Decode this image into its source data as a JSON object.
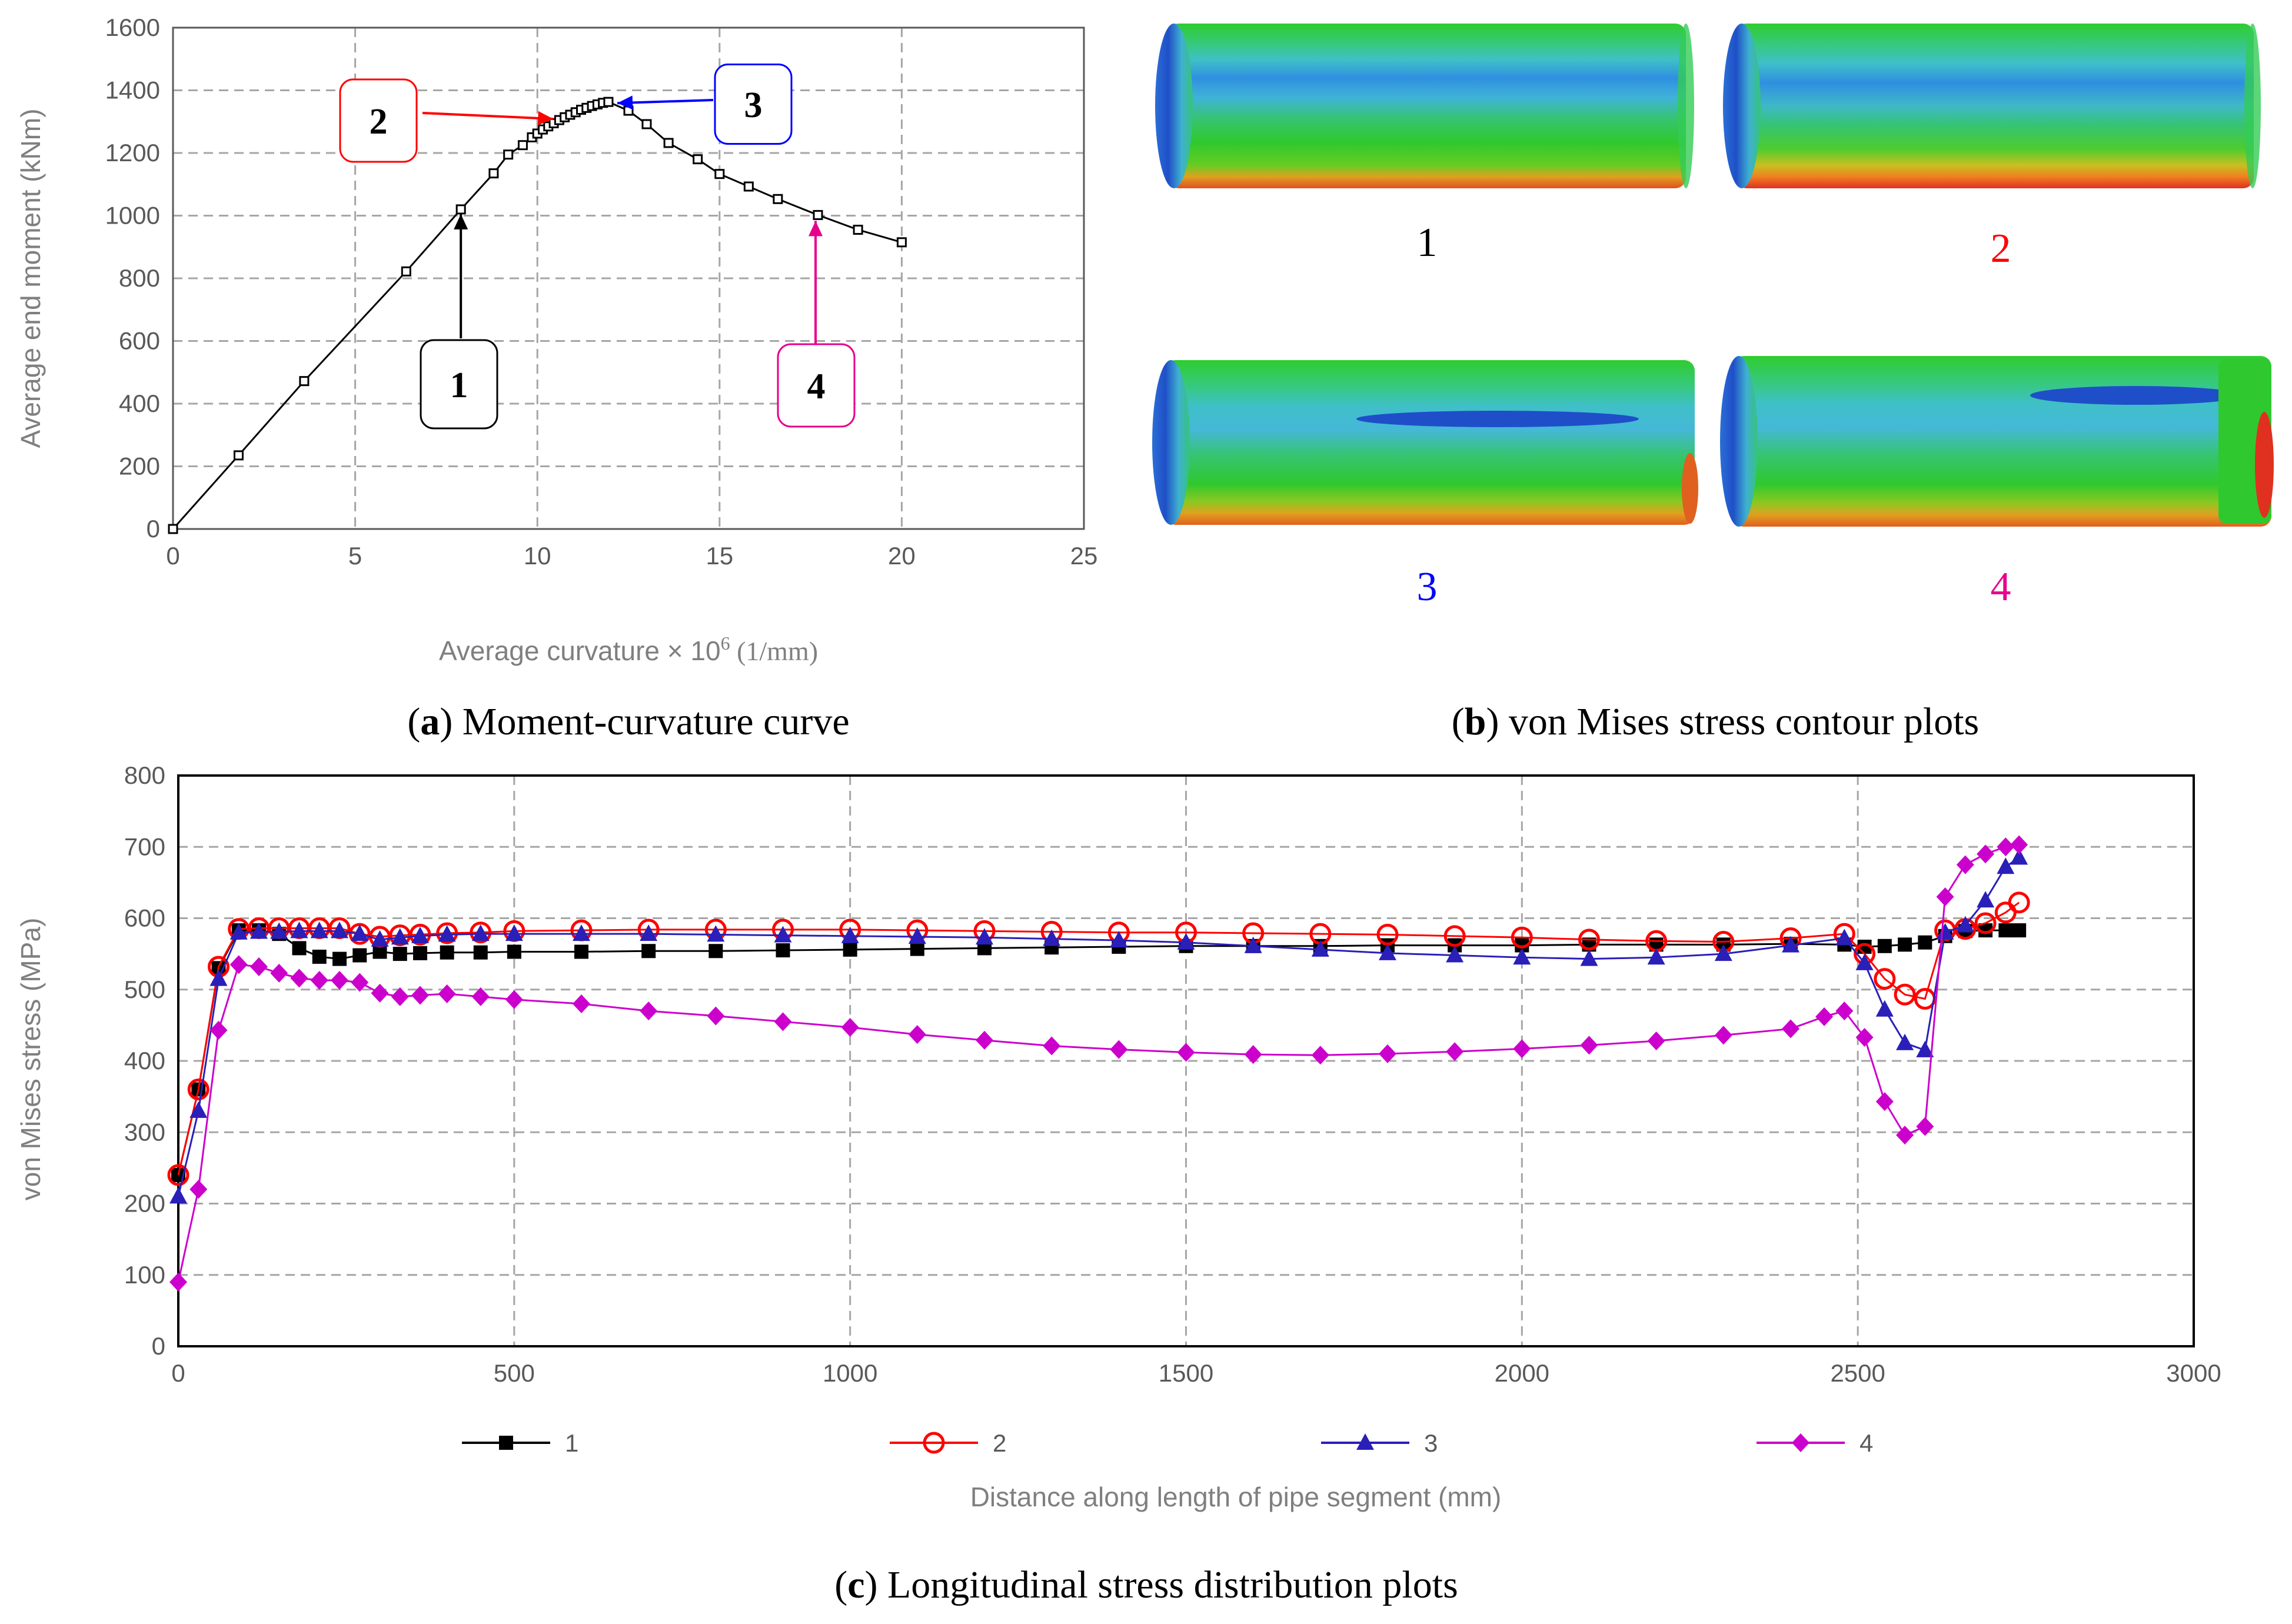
{
  "captions": {
    "a_letter": "a",
    "a_text": " Moment-curvature curve",
    "b_letter": "b",
    "b_text": " von Mises stress contour plots",
    "c_letter": "c",
    "c_text": " Longitudinal stress distribution plots"
  },
  "pipes": {
    "labels": [
      {
        "text": "1",
        "color": "#000000"
      },
      {
        "text": "2",
        "color": "#ff0000"
      },
      {
        "text": "3",
        "color": "#0000ff"
      },
      {
        "text": "4",
        "color": "#e6008c"
      }
    ]
  },
  "colors": {
    "black": "#000000",
    "red": "#ff0000",
    "blue": "#0000ff",
    "navy": "#2a1fb8",
    "magenta": "#cc00cc",
    "annot4": "#e6008c"
  },
  "chart_data": [
    {
      "id": "a",
      "type": "line",
      "title": "Moment-curvature curve",
      "xlabel_prefix": "Average curvature × 10",
      "xlabel_sup": "6",
      "xlabel_suffix": " (1/mm)",
      "ylabel": "Average end moment (kNm)",
      "xlim": [
        0,
        25
      ],
      "ylim": [
        0,
        1600
      ],
      "xticks": [
        0,
        5,
        10,
        15,
        20,
        25
      ],
      "yticks": [
        0,
        200,
        400,
        600,
        800,
        1000,
        1200,
        1400,
        1600
      ],
      "grid": true,
      "series": [
        {
          "name": "moment-curvature",
          "x": [
            0,
            1.8,
            3.6,
            6.4,
            7.9,
            8.8,
            9.2,
            9.6,
            9.85,
            10.0,
            10.15,
            10.3,
            10.45,
            10.6,
            10.75,
            10.9,
            11.05,
            11.2,
            11.35,
            11.5,
            11.65,
            11.8,
            11.95,
            12.5,
            13.0,
            13.6,
            14.4,
            15.0,
            15.8,
            16.6,
            17.7,
            18.8,
            20.0
          ],
          "y": [
            0,
            235,
            472,
            822,
            1020,
            1135,
            1195,
            1225,
            1250,
            1262,
            1275,
            1285,
            1295,
            1305,
            1314,
            1322,
            1330,
            1338,
            1344,
            1350,
            1355,
            1360,
            1363,
            1335,
            1292,
            1232,
            1180,
            1133,
            1093,
            1053,
            1002,
            955,
            915
          ]
        }
      ],
      "annotations": [
        {
          "label": "1",
          "color": "#000000",
          "point": [
            7.9,
            1020
          ]
        },
        {
          "label": "2",
          "color": "#ff0000",
          "point": [
            10.6,
            1305
          ]
        },
        {
          "label": "3",
          "color": "#0000ff",
          "point": [
            12.0,
            1363
          ]
        },
        {
          "label": "4",
          "color": "#e6008c",
          "point": [
            17.7,
            1002
          ]
        }
      ]
    },
    {
      "id": "c",
      "type": "line",
      "title": "Longitudinal stress distribution plots",
      "xlabel": "Distance along length of pipe segment (mm)",
      "ylabel": "von Mises stress (MPa)",
      "xlim": [
        0,
        3000
      ],
      "ylim": [
        0,
        800
      ],
      "xticks": [
        0,
        500,
        1000,
        1500,
        2000,
        2500,
        3000
      ],
      "yticks": [
        0,
        100,
        200,
        300,
        400,
        500,
        600,
        700,
        800
      ],
      "grid": true,
      "legend_position": "bottom",
      "series": [
        {
          "name": "1",
          "marker": "square",
          "color": "#000000",
          "x": [
            0,
            30,
            60,
            90,
            120,
            150,
            180,
            210,
            240,
            270,
            300,
            330,
            360,
            400,
            450,
            500,
            600,
            700,
            800,
            900,
            1000,
            1100,
            1200,
            1300,
            1400,
            1500,
            1600,
            1700,
            1800,
            1900,
            2000,
            2100,
            2200,
            2300,
            2400,
            2480,
            2510,
            2540,
            2570,
            2600,
            2630,
            2660,
            2690,
            2720,
            2740
          ],
          "y": [
            240,
            360,
            530,
            583,
            583,
            578,
            558,
            546,
            543,
            548,
            553,
            550,
            551,
            552,
            552,
            553,
            553,
            554,
            554,
            555,
            556,
            557,
            558,
            559,
            560,
            561,
            561,
            561,
            562,
            562,
            562,
            563,
            563,
            563,
            564,
            563,
            560,
            561,
            563,
            566,
            575,
            582,
            583,
            583,
            583
          ]
        },
        {
          "name": "2",
          "marker": "circle",
          "color": "#ff0000",
          "x": [
            0,
            30,
            60,
            90,
            120,
            150,
            180,
            210,
            240,
            270,
            300,
            330,
            360,
            400,
            450,
            500,
            600,
            700,
            800,
            900,
            1000,
            1100,
            1200,
            1300,
            1400,
            1500,
            1600,
            1700,
            1800,
            1900,
            2000,
            2100,
            2200,
            2300,
            2400,
            2480,
            2510,
            2540,
            2570,
            2600,
            2630,
            2660,
            2690,
            2720,
            2740
          ],
          "y": [
            240,
            360,
            532,
            585,
            586,
            586,
            586,
            586,
            586,
            578,
            574,
            576,
            577,
            579,
            580,
            582,
            583,
            584,
            584,
            584,
            584,
            583,
            582,
            581,
            580,
            580,
            579,
            578,
            577,
            575,
            573,
            570,
            568,
            567,
            572,
            578,
            550,
            515,
            493,
            487,
            583,
            585,
            593,
            608,
            622
          ]
        },
        {
          "name": "3",
          "marker": "triangle",
          "color": "#2a1fb8",
          "x": [
            0,
            30,
            60,
            90,
            120,
            150,
            180,
            210,
            240,
            270,
            300,
            330,
            360,
            400,
            450,
            500,
            600,
            700,
            800,
            900,
            1000,
            1100,
            1200,
            1300,
            1400,
            1500,
            1600,
            1700,
            1800,
            1900,
            2000,
            2100,
            2200,
            2300,
            2400,
            2480,
            2510,
            2540,
            2570,
            2600,
            2630,
            2660,
            2690,
            2720,
            2740
          ],
          "y": [
            210,
            330,
            515,
            580,
            581,
            581,
            582,
            582,
            582,
            578,
            570,
            573,
            575,
            577,
            578,
            578,
            578,
            578,
            577,
            576,
            575,
            574,
            573,
            571,
            569,
            566,
            561,
            556,
            551,
            548,
            545,
            543,
            545,
            550,
            562,
            572,
            537,
            472,
            425,
            415,
            580,
            590,
            625,
            672,
            685
          ]
        },
        {
          "name": "4",
          "marker": "diamond",
          "color": "#cc00cc",
          "x": [
            0,
            30,
            60,
            90,
            120,
            150,
            180,
            210,
            240,
            270,
            300,
            330,
            360,
            400,
            450,
            500,
            600,
            700,
            800,
            900,
            1000,
            1100,
            1200,
            1300,
            1400,
            1500,
            1600,
            1700,
            1800,
            1900,
            2000,
            2100,
            2200,
            2300,
            2400,
            2450,
            2480,
            2510,
            2540,
            2570,
            2600,
            2630,
            2660,
            2690,
            2720,
            2740
          ],
          "y": [
            90,
            220,
            443,
            535,
            532,
            523,
            516,
            513,
            513,
            510,
            495,
            490,
            492,
            494,
            490,
            486,
            480,
            470,
            463,
            455,
            447,
            437,
            429,
            421,
            416,
            412,
            409,
            408,
            410,
            413,
            417,
            422,
            428,
            436,
            445,
            462,
            470,
            433,
            343,
            296,
            308,
            630,
            675,
            690,
            700,
            703
          ]
        }
      ]
    }
  ]
}
